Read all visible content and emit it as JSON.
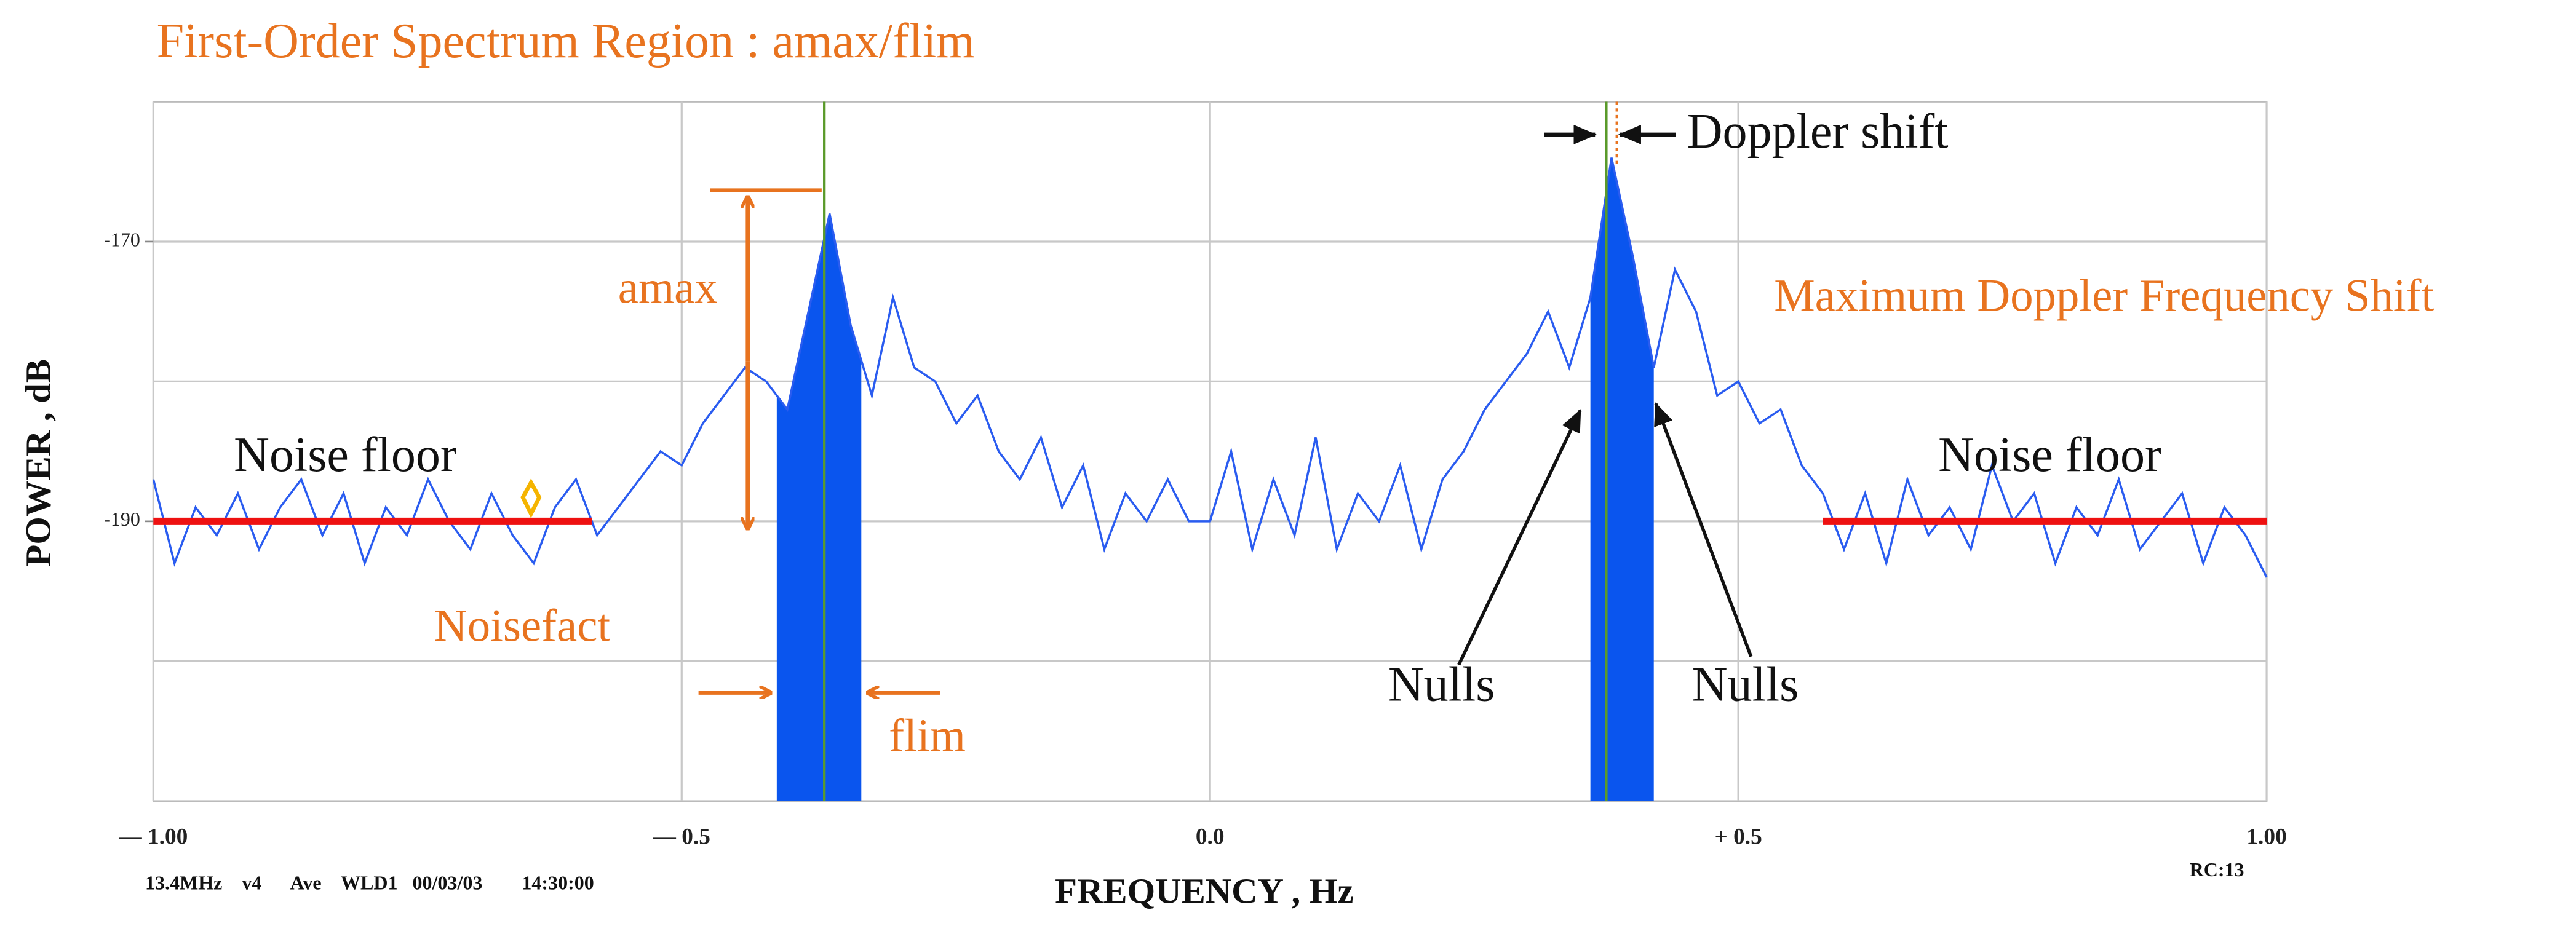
{
  "chart_data": {
    "type": "line",
    "title": "First-Order Spectrum Region : amax/flim",
    "x_label": "FREQUENCY , Hz",
    "y_label": "POWER , dB",
    "footer_left": "13.4MHz    v4      Ave    WLD1   00/03/03        14:30:00",
    "footer_right": "RC:13",
    "xlim": [
      -1,
      1
    ],
    "ylim": [
      -210,
      -160
    ],
    "xticks": [
      {
        "value": -1,
        "label": "— 1.00"
      },
      {
        "value": -0.5,
        "label": "— 0.5"
      },
      {
        "value": 0,
        "label": "0.0"
      },
      {
        "value": 0.5,
        "label": "+ 0.5"
      },
      {
        "value": 1,
        "label": "1.00"
      }
    ],
    "yticks": [
      -190,
      -170
    ],
    "ygrid": [
      -200,
      -190,
      -180,
      -170
    ],
    "grid": true,
    "x": [
      -1.0,
      -0.98,
      -0.96,
      -0.94,
      -0.92,
      -0.9,
      -0.88,
      -0.86,
      -0.84,
      -0.82,
      -0.8,
      -0.78,
      -0.76,
      -0.74,
      -0.72,
      -0.7,
      -0.68,
      -0.66,
      -0.64,
      -0.62,
      -0.6,
      -0.58,
      -0.56,
      -0.54,
      -0.52,
      -0.5,
      -0.48,
      -0.46,
      -0.44,
      -0.42,
      -0.4,
      -0.38,
      -0.36,
      -0.34,
      -0.32,
      -0.3,
      -0.28,
      -0.26,
      -0.24,
      -0.22,
      -0.2,
      -0.18,
      -0.16,
      -0.14,
      -0.12,
      -0.1,
      -0.08,
      -0.06,
      -0.04,
      -0.02,
      0.0,
      0.02,
      0.04,
      0.06,
      0.08,
      0.1,
      0.12,
      0.14,
      0.16,
      0.18,
      0.2,
      0.22,
      0.24,
      0.26,
      0.28,
      0.3,
      0.32,
      0.34,
      0.36,
      0.38,
      0.4,
      0.42,
      0.44,
      0.46,
      0.48,
      0.5,
      0.52,
      0.54,
      0.56,
      0.58,
      0.6,
      0.62,
      0.64,
      0.66,
      0.68,
      0.7,
      0.72,
      0.74,
      0.76,
      0.78,
      0.8,
      0.82,
      0.84,
      0.86,
      0.88,
      0.9,
      0.92,
      0.94,
      0.96,
      0.98,
      1.0
    ],
    "series": [
      {
        "color": "#2a5cf0",
        "values": [
          -187,
          -193,
          -189,
          -191,
          -188,
          -192,
          -189,
          -187,
          -191,
          -188,
          -193,
          -189,
          -191,
          -187,
          -190,
          -192,
          -188,
          -191,
          -193,
          -189,
          -187,
          -191,
          -189,
          -187,
          -185,
          -186,
          -183,
          -181,
          -179,
          -180,
          -182,
          -175,
          -168,
          -176,
          -181,
          -174,
          -179,
          -180,
          -183,
          -181,
          -185,
          -187,
          -184,
          -189,
          -186,
          -192,
          -188,
          -190,
          -187,
          -190,
          -190,
          -185,
          -192,
          -187,
          -191,
          -184,
          -192,
          -188,
          -190,
          -186,
          -192,
          -187,
          -185,
          -182,
          -180,
          -178,
          -175,
          -179,
          -174,
          -164,
          -171,
          -179,
          -172,
          -175,
          -181,
          -180,
          -183,
          -182,
          -186,
          -188,
          -192,
          -188,
          -193,
          -187,
          -191,
          -189,
          -192,
          -186,
          -190,
          -188,
          -193,
          -189,
          -191,
          -187,
          -192,
          -190,
          -188,
          -193,
          -189,
          -191,
          -194
        ]
      }
    ],
    "shaded": [
      [
        -0.41,
        -0.33
      ],
      [
        0.36,
        0.42
      ]
    ],
    "shade_color": "#0a55ee",
    "markers": [
      -0.365,
      0.375
    ],
    "marker_color": "#5a9a2a",
    "doppler_marker": 0.385,
    "noise_floor": {
      "value": -190,
      "ranges": [
        [
          -1,
          -0.585
        ],
        [
          0.58,
          1
        ]
      ],
      "color": "#ee1111"
    },
    "annotations": [
      "amax",
      "Noisefact",
      "flim",
      "Noise floor",
      "Noise floor",
      "Doppler shift",
      "Maximum Doppler Frequency Shift",
      "Nulls",
      "Nulls"
    ]
  }
}
